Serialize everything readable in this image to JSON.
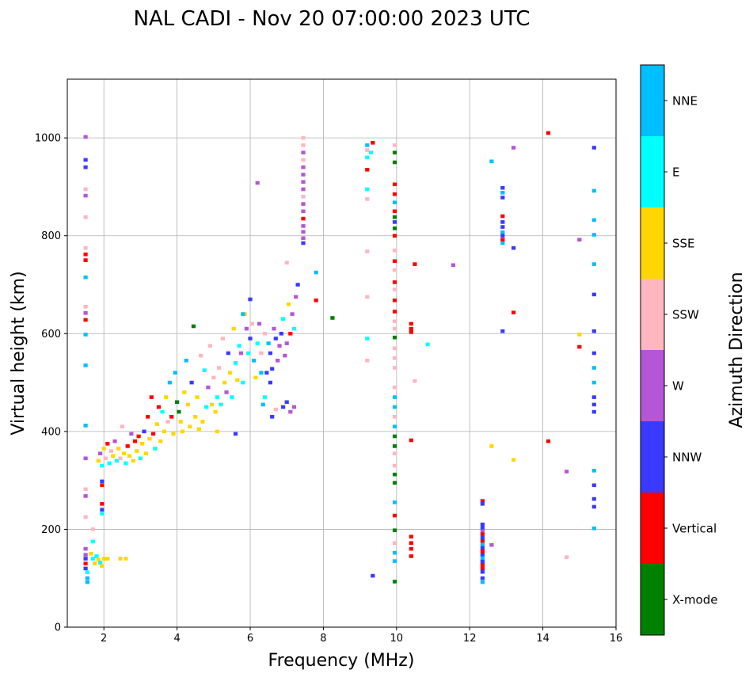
{
  "chart_data": {
    "type": "scatter",
    "title": "NAL CADI - Nov 20 07:00:00 2023 UTC",
    "xlabel": "Frequency (MHz)",
    "ylabel": "Virtual height (km)",
    "xlim": [
      1,
      16
    ],
    "ylim": [
      0,
      1120
    ],
    "xticks": [
      2,
      4,
      6,
      8,
      10,
      12,
      14,
      16
    ],
    "yticks": [
      0,
      200,
      400,
      600,
      800,
      1000
    ],
    "grid": true,
    "colorbar": {
      "label": "Azimuth Direction",
      "categories": [
        {
          "name": "X-mode",
          "color": "#008000"
        },
        {
          "name": "Vertical",
          "color": "#ff0000"
        },
        {
          "name": "NNW",
          "color": "#3a3aff"
        },
        {
          "name": "W",
          "color": "#b456d6"
        },
        {
          "name": "SSW",
          "color": "#ffb6c1"
        },
        {
          "name": "SSE",
          "color": "#ffd700"
        },
        {
          "name": "E",
          "color": "#00ffff"
        },
        {
          "name": "NNE",
          "color": "#00bfff"
        }
      ]
    },
    "points": [
      [
        1.5,
        1002,
        "W"
      ],
      [
        1.5,
        955,
        "NNW"
      ],
      [
        1.5,
        940,
        "NNW"
      ],
      [
        1.5,
        895,
        "SSW"
      ],
      [
        1.5,
        882,
        "W"
      ],
      [
        1.5,
        838,
        "SSW"
      ],
      [
        1.5,
        775,
        "SSW"
      ],
      [
        1.5,
        762,
        "Vertical"
      ],
      [
        1.5,
        750,
        "Vertical"
      ],
      [
        1.5,
        715,
        "NNE"
      ],
      [
        1.5,
        655,
        "SSW"
      ],
      [
        1.5,
        642,
        "W"
      ],
      [
        1.5,
        628,
        "Vertical"
      ],
      [
        1.5,
        598,
        "NNE"
      ],
      [
        1.5,
        535,
        "NNE"
      ],
      [
        1.5,
        412,
        "NNE"
      ],
      [
        1.5,
        345,
        "W"
      ],
      [
        1.5,
        282,
        "SSW"
      ],
      [
        1.5,
        268,
        "W"
      ],
      [
        1.5,
        225,
        "SSW"
      ],
      [
        1.5,
        160,
        "W"
      ],
      [
        1.5,
        148,
        "W"
      ],
      [
        1.5,
        140,
        "NNW"
      ],
      [
        1.5,
        130,
        "Vertical"
      ],
      [
        1.5,
        120,
        "NNW"
      ],
      [
        1.55,
        112,
        "E"
      ],
      [
        1.55,
        100,
        "NNE"
      ],
      [
        1.55,
        92,
        "NNE"
      ],
      [
        1.7,
        200,
        "SSW"
      ],
      [
        1.7,
        175,
        "E"
      ],
      [
        1.65,
        150,
        "SSE"
      ],
      [
        1.7,
        140,
        "E"
      ],
      [
        1.75,
        130,
        "SSE"
      ],
      [
        1.8,
        145,
        "E"
      ],
      [
        1.85,
        138,
        "SSE"
      ],
      [
        1.9,
        132,
        "E"
      ],
      [
        1.95,
        125,
        "SSE"
      ],
      [
        2.0,
        140,
        "SSE"
      ],
      [
        2.1,
        140,
        "SSE"
      ],
      [
        2.45,
        140,
        "SSE"
      ],
      [
        2.6,
        140,
        "SSE"
      ],
      [
        1.95,
        298,
        "NNW"
      ],
      [
        1.95,
        290,
        "Vertical"
      ],
      [
        1.95,
        252,
        "Vertical"
      ],
      [
        1.95,
        240,
        "NNW"
      ],
      [
        1.95,
        232,
        "E"
      ],
      [
        1.85,
        340,
        "SSE"
      ],
      [
        1.9,
        355,
        "W"
      ],
      [
        1.95,
        330,
        "E"
      ],
      [
        2.0,
        365,
        "SSE"
      ],
      [
        2.05,
        345,
        "SSW"
      ],
      [
        2.1,
        375,
        "Vertical"
      ],
      [
        2.15,
        335,
        "E"
      ],
      [
        2.2,
        360,
        "SSW"
      ],
      [
        2.25,
        350,
        "SSE"
      ],
      [
        2.3,
        380,
        "W"
      ],
      [
        2.35,
        340,
        "E"
      ],
      [
        2.4,
        365,
        "SSE"
      ],
      [
        2.45,
        345,
        "SSW"
      ],
      [
        2.5,
        410,
        "SSW"
      ],
      [
        2.55,
        355,
        "SSE"
      ],
      [
        2.6,
        335,
        "E"
      ],
      [
        2.65,
        370,
        "Vertical"
      ],
      [
        2.7,
        350,
        "SSE"
      ],
      [
        2.75,
        395,
        "W"
      ],
      [
        2.8,
        340,
        "SSE"
      ],
      [
        2.85,
        380,
        "Vertical"
      ],
      [
        2.9,
        360,
        "SSE"
      ],
      [
        2.95,
        390,
        "Vertical"
      ],
      [
        3.0,
        345,
        "E"
      ],
      [
        3.05,
        375,
        "SSE"
      ],
      [
        3.1,
        400,
        "NNW"
      ],
      [
        3.15,
        355,
        "SSE"
      ],
      [
        3.2,
        430,
        "Vertical"
      ],
      [
        3.25,
        385,
        "SSE"
      ],
      [
        3.3,
        470,
        "Vertical"
      ],
      [
        3.35,
        395,
        "Vertical"
      ],
      [
        3.4,
        365,
        "E"
      ],
      [
        3.45,
        415,
        "SSE"
      ],
      [
        3.5,
        450,
        "Vertical"
      ],
      [
        3.55,
        380,
        "SSE"
      ],
      [
        3.6,
        440,
        "E"
      ],
      [
        3.65,
        400,
        "SSE"
      ],
      [
        3.7,
        470,
        "SSE"
      ],
      [
        3.75,
        420,
        "SSW"
      ],
      [
        3.8,
        500,
        "NNE"
      ],
      [
        3.85,
        430,
        "Vertical"
      ],
      [
        3.9,
        395,
        "SSE"
      ],
      [
        3.95,
        520,
        "NNE"
      ],
      [
        4.0,
        460,
        "X-mode"
      ],
      [
        4.05,
        440,
        "X-mode"
      ],
      [
        4.1,
        420,
        "SSE"
      ],
      [
        4.15,
        400,
        "SSE"
      ],
      [
        4.2,
        480,
        "SSE"
      ],
      [
        4.25,
        545,
        "NNE"
      ],
      [
        4.3,
        455,
        "SSE"
      ],
      [
        4.35,
        410,
        "SSE"
      ],
      [
        4.4,
        500,
        "NNW"
      ],
      [
        4.45,
        615,
        "X-mode"
      ],
      [
        4.5,
        430,
        "SSE"
      ],
      [
        4.55,
        470,
        "SSE"
      ],
      [
        4.6,
        405,
        "SSE"
      ],
      [
        4.65,
        555,
        "SSW"
      ],
      [
        4.7,
        420,
        "SSE"
      ],
      [
        4.75,
        525,
        "E"
      ],
      [
        4.8,
        450,
        "E"
      ],
      [
        4.85,
        490,
        "W"
      ],
      [
        4.9,
        575,
        "SSW"
      ],
      [
        4.95,
        455,
        "SSE"
      ],
      [
        5.0,
        510,
        "SSW"
      ],
      [
        5.05,
        440,
        "SSE"
      ],
      [
        5.1,
        470,
        "E"
      ],
      [
        5.15,
        530,
        "SSW"
      ],
      [
        5.2,
        455,
        "E"
      ],
      [
        5.25,
        590,
        "SSW"
      ],
      [
        5.3,
        500,
        "SSE"
      ],
      [
        5.35,
        480,
        "W"
      ],
      [
        5.4,
        560,
        "NNW"
      ],
      [
        5.45,
        520,
        "SSE"
      ],
      [
        5.5,
        470,
        "E"
      ],
      [
        5.55,
        610,
        "SSE"
      ],
      [
        5.6,
        540,
        "E"
      ],
      [
        5.65,
        505,
        "SSE"
      ],
      [
        5.7,
        575,
        "E"
      ],
      [
        5.75,
        560,
        "W"
      ],
      [
        5.8,
        500,
        "E"
      ],
      [
        5.85,
        640,
        "SSE"
      ],
      [
        5.9,
        610,
        "W"
      ],
      [
        5.95,
        560,
        "E"
      ],
      [
        6.0,
        590,
        "NNW"
      ],
      [
        6.05,
        620,
        "SSW"
      ],
      [
        6.1,
        545,
        "NNE"
      ],
      [
        6.15,
        510,
        "SSE"
      ],
      [
        6.2,
        580,
        "E"
      ],
      [
        6.25,
        620,
        "W"
      ],
      [
        6.3,
        560,
        "SSW"
      ],
      [
        6.35,
        455,
        "NNE"
      ],
      [
        6.4,
        600,
        "SSW"
      ],
      [
        6.45,
        520,
        "NNW"
      ],
      [
        6.5,
        580,
        "NNE"
      ],
      [
        6.55,
        560,
        "NNW"
      ],
      [
        6.6,
        528,
        "NNW"
      ],
      [
        6.65,
        610,
        "W"
      ],
      [
        6.7,
        590,
        "NNW"
      ],
      [
        6.75,
        545,
        "W"
      ],
      [
        6.8,
        575,
        "W"
      ],
      [
        6.85,
        600,
        "NNW"
      ],
      [
        6.9,
        630,
        "E"
      ],
      [
        6.95,
        555,
        "W"
      ],
      [
        7.0,
        580,
        "W"
      ],
      [
        7.05,
        660,
        "SSE"
      ],
      [
        7.1,
        600,
        "Vertical"
      ],
      [
        7.15,
        640,
        "W"
      ],
      [
        7.2,
        610,
        "E"
      ],
      [
        7.25,
        675,
        "W"
      ],
      [
        7.3,
        700,
        "NNW"
      ],
      [
        7.0,
        745,
        "SSW"
      ],
      [
        6.55,
        500,
        "NNW"
      ],
      [
        6.7,
        445,
        "SSW"
      ],
      [
        6.9,
        450,
        "NNW"
      ],
      [
        7.0,
        460,
        "NNW"
      ],
      [
        7.1,
        440,
        "W"
      ],
      [
        7.2,
        450,
        "W"
      ],
      [
        6.6,
        430,
        "NNW"
      ],
      [
        5.6,
        395,
        "NNW"
      ],
      [
        5.1,
        400,
        "SSE"
      ],
      [
        6.4,
        470,
        "E"
      ],
      [
        6.3,
        520,
        "NNE"
      ],
      [
        6.0,
        670,
        "NNW"
      ],
      [
        5.8,
        640,
        "NNE"
      ],
      [
        6.2,
        908,
        "W"
      ],
      [
        7.45,
        1000,
        "SSW"
      ],
      [
        7.45,
        985,
        "SSW"
      ],
      [
        7.45,
        970,
        "W"
      ],
      [
        7.45,
        955,
        "SSW"
      ],
      [
        7.45,
        940,
        "W"
      ],
      [
        7.45,
        925,
        "W"
      ],
      [
        7.45,
        910,
        "W"
      ],
      [
        7.45,
        895,
        "W"
      ],
      [
        7.45,
        880,
        "SSW"
      ],
      [
        7.45,
        865,
        "W"
      ],
      [
        7.45,
        850,
        "W"
      ],
      [
        7.45,
        835,
        "Vertical"
      ],
      [
        7.45,
        820,
        "W"
      ],
      [
        7.45,
        808,
        "W"
      ],
      [
        7.45,
        795,
        "W"
      ],
      [
        7.45,
        785,
        "NNW"
      ],
      [
        7.8,
        725,
        "NNE"
      ],
      [
        7.8,
        668,
        "Vertical"
      ],
      [
        8.25,
        632,
        "X-mode"
      ],
      [
        9.2,
        985,
        "NNE"
      ],
      [
        9.2,
        975,
        "SSW"
      ],
      [
        9.3,
        970,
        "E"
      ],
      [
        9.2,
        960,
        "E"
      ],
      [
        9.35,
        990,
        "Vertical"
      ],
      [
        9.2,
        935,
        "Vertical"
      ],
      [
        9.2,
        895,
        "E"
      ],
      [
        9.2,
        875,
        "SSW"
      ],
      [
        9.2,
        768,
        "SSW"
      ],
      [
        9.2,
        675,
        "SSW"
      ],
      [
        9.2,
        590,
        "E"
      ],
      [
        9.2,
        545,
        "SSW"
      ],
      [
        9.35,
        105,
        "NNW"
      ],
      [
        9.95,
        985,
        "SSW"
      ],
      [
        9.95,
        970,
        "X-mode"
      ],
      [
        9.95,
        950,
        "X-mode"
      ],
      [
        9.95,
        905,
        "Vertical"
      ],
      [
        9.95,
        885,
        "Vertical"
      ],
      [
        9.95,
        868,
        "NNE"
      ],
      [
        9.95,
        850,
        "Vertical"
      ],
      [
        9.95,
        838,
        "X-mode"
      ],
      [
        9.95,
        828,
        "NNW"
      ],
      [
        9.95,
        815,
        "X-mode"
      ],
      [
        9.95,
        800,
        "Vertical"
      ],
      [
        9.95,
        770,
        "SSW"
      ],
      [
        9.95,
        748,
        "Vertical"
      ],
      [
        9.95,
        730,
        "SSW"
      ],
      [
        9.95,
        705,
        "Vertical"
      ],
      [
        9.95,
        690,
        "SSW"
      ],
      [
        9.95,
        668,
        "Vertical"
      ],
      [
        9.95,
        645,
        "Vertical"
      ],
      [
        9.95,
        625,
        "SSW"
      ],
      [
        9.95,
        610,
        "SSW"
      ],
      [
        9.95,
        592,
        "X-mode"
      ],
      [
        9.95,
        570,
        "SSW"
      ],
      [
        9.95,
        550,
        "SSW"
      ],
      [
        9.95,
        530,
        "SSW"
      ],
      [
        9.95,
        490,
        "SSW"
      ],
      [
        9.95,
        470,
        "NNE"
      ],
      [
        9.95,
        450,
        "NNE"
      ],
      [
        9.95,
        430,
        "SSW"
      ],
      [
        9.95,
        410,
        "NNE"
      ],
      [
        9.95,
        390,
        "X-mode"
      ],
      [
        9.95,
        370,
        "X-mode"
      ],
      [
        9.95,
        355,
        "SSW"
      ],
      [
        9.95,
        330,
        "SSW"
      ],
      [
        9.95,
        312,
        "X-mode"
      ],
      [
        9.95,
        295,
        "X-mode"
      ],
      [
        9.95,
        255,
        "NNE"
      ],
      [
        9.95,
        228,
        "Vertical"
      ],
      [
        9.95,
        198,
        "X-mode"
      ],
      [
        9.95,
        172,
        "SSW"
      ],
      [
        9.95,
        152,
        "NNE"
      ],
      [
        9.95,
        135,
        "NNE"
      ],
      [
        9.95,
        93,
        "X-mode"
      ],
      [
        10.4,
        620,
        "Vertical"
      ],
      [
        10.4,
        610,
        "Vertical"
      ],
      [
        10.4,
        603,
        "Vertical"
      ],
      [
        10.4,
        382,
        "Vertical"
      ],
      [
        10.4,
        185,
        "Vertical"
      ],
      [
        10.4,
        172,
        "Vertical"
      ],
      [
        10.4,
        160,
        "Vertical"
      ],
      [
        10.4,
        145,
        "Vertical"
      ],
      [
        10.5,
        742,
        "Vertical"
      ],
      [
        10.5,
        503,
        "SSW"
      ],
      [
        10.85,
        578,
        "E"
      ],
      [
        11.55,
        740,
        "W"
      ],
      [
        12.35,
        258,
        "Vertical"
      ],
      [
        12.35,
        252,
        "NNW"
      ],
      [
        12.35,
        210,
        "NNW"
      ],
      [
        12.35,
        203,
        "NNW"
      ],
      [
        12.35,
        196,
        "W"
      ],
      [
        12.35,
        190,
        "Vertical"
      ],
      [
        12.35,
        183,
        "NNW"
      ],
      [
        12.35,
        176,
        "Vertical"
      ],
      [
        12.35,
        169,
        "NNE"
      ],
      [
        12.35,
        162,
        "NNW"
      ],
      [
        12.35,
        155,
        "Vertical"
      ],
      [
        12.35,
        148,
        "NNW"
      ],
      [
        12.35,
        141,
        "NNE"
      ],
      [
        12.35,
        134,
        "NNW"
      ],
      [
        12.35,
        127,
        "Vertical"
      ],
      [
        12.35,
        120,
        "Vertical"
      ],
      [
        12.35,
        113,
        "NNW"
      ],
      [
        12.35,
        100,
        "NNW"
      ],
      [
        12.35,
        92,
        "NNE"
      ],
      [
        12.6,
        168,
        "W"
      ],
      [
        12.6,
        370,
        "SSE"
      ],
      [
        12.6,
        952,
        "NNE"
      ],
      [
        12.9,
        898,
        "NNW"
      ],
      [
        12.9,
        888,
        "NNE"
      ],
      [
        12.9,
        878,
        "NNW"
      ],
      [
        12.9,
        840,
        "Vertical"
      ],
      [
        12.9,
        828,
        "NNW"
      ],
      [
        12.9,
        818,
        "NNW"
      ],
      [
        12.9,
        807,
        "NNE"
      ],
      [
        12.9,
        800,
        "NNW"
      ],
      [
        12.9,
        792,
        "Vertical"
      ],
      [
        12.9,
        785,
        "NNE"
      ],
      [
        12.9,
        605,
        "NNW"
      ],
      [
        13.2,
        980,
        "W"
      ],
      [
        13.2,
        775,
        "NNW"
      ],
      [
        13.2,
        643,
        "Vertical"
      ],
      [
        13.2,
        342,
        "SSE"
      ],
      [
        14.15,
        1010,
        "Vertical"
      ],
      [
        14.15,
        380,
        "Vertical"
      ],
      [
        14.65,
        318,
        "W"
      ],
      [
        14.65,
        143,
        "SSW"
      ],
      [
        15.0,
        792,
        "W"
      ],
      [
        15.0,
        598,
        "SSE"
      ],
      [
        15.0,
        573,
        "Vertical"
      ],
      [
        15.4,
        980,
        "NNW"
      ],
      [
        15.4,
        892,
        "NNE"
      ],
      [
        15.4,
        832,
        "NNE"
      ],
      [
        15.4,
        802,
        "NNE"
      ],
      [
        15.4,
        742,
        "NNE"
      ],
      [
        15.4,
        680,
        "NNW"
      ],
      [
        15.4,
        605,
        "NNW"
      ],
      [
        15.4,
        560,
        "NNW"
      ],
      [
        15.4,
        530,
        "NNE"
      ],
      [
        15.4,
        500,
        "NNE"
      ],
      [
        15.4,
        470,
        "NNW"
      ],
      [
        15.4,
        455,
        "NNW"
      ],
      [
        15.4,
        440,
        "NNW"
      ],
      [
        15.4,
        320,
        "NNE"
      ],
      [
        15.4,
        290,
        "NNW"
      ],
      [
        15.4,
        262,
        "NNW"
      ],
      [
        15.4,
        246,
        "NNW"
      ],
      [
        15.4,
        202,
        "NNE"
      ]
    ]
  }
}
